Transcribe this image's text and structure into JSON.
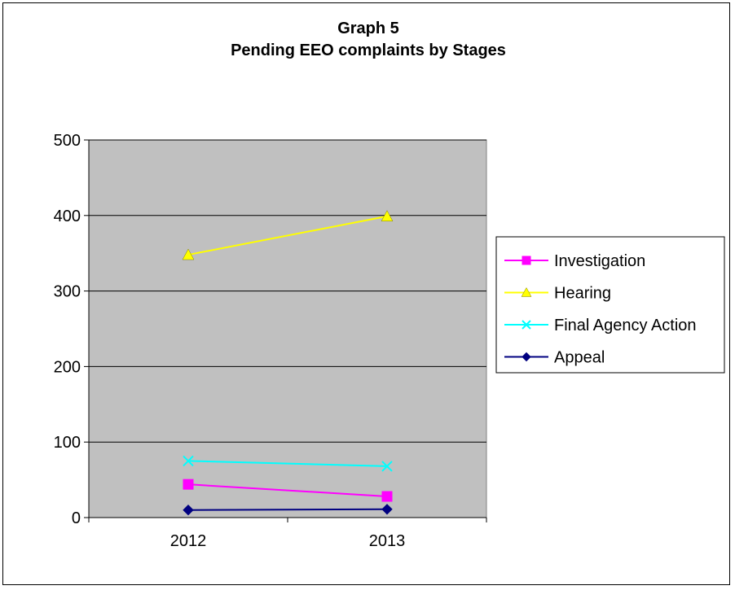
{
  "chart_data": {
    "type": "line",
    "title": "Graph 5",
    "subtitle": "Pending EEO complaints by Stages",
    "categories": [
      "2012",
      "2013"
    ],
    "ylim": [
      0,
      500
    ],
    "yticks": [
      0,
      100,
      200,
      300,
      400,
      500
    ],
    "grid": true,
    "legend_position": "right",
    "plot_background": "#c0c0c0",
    "series": [
      {
        "name": "Investigation",
        "values": [
          44,
          28
        ],
        "color": "#ff00ff",
        "marker": "square"
      },
      {
        "name": "Hearing",
        "values": [
          348,
          399
        ],
        "color": "#ffff00",
        "marker": "triangle"
      },
      {
        "name": "Final Agency Action",
        "values": [
          75,
          68
        ],
        "color": "#00ffff",
        "marker": "x"
      },
      {
        "name": "Appeal",
        "values": [
          10,
          11
        ],
        "color": "#000080",
        "marker": "diamond"
      }
    ]
  }
}
